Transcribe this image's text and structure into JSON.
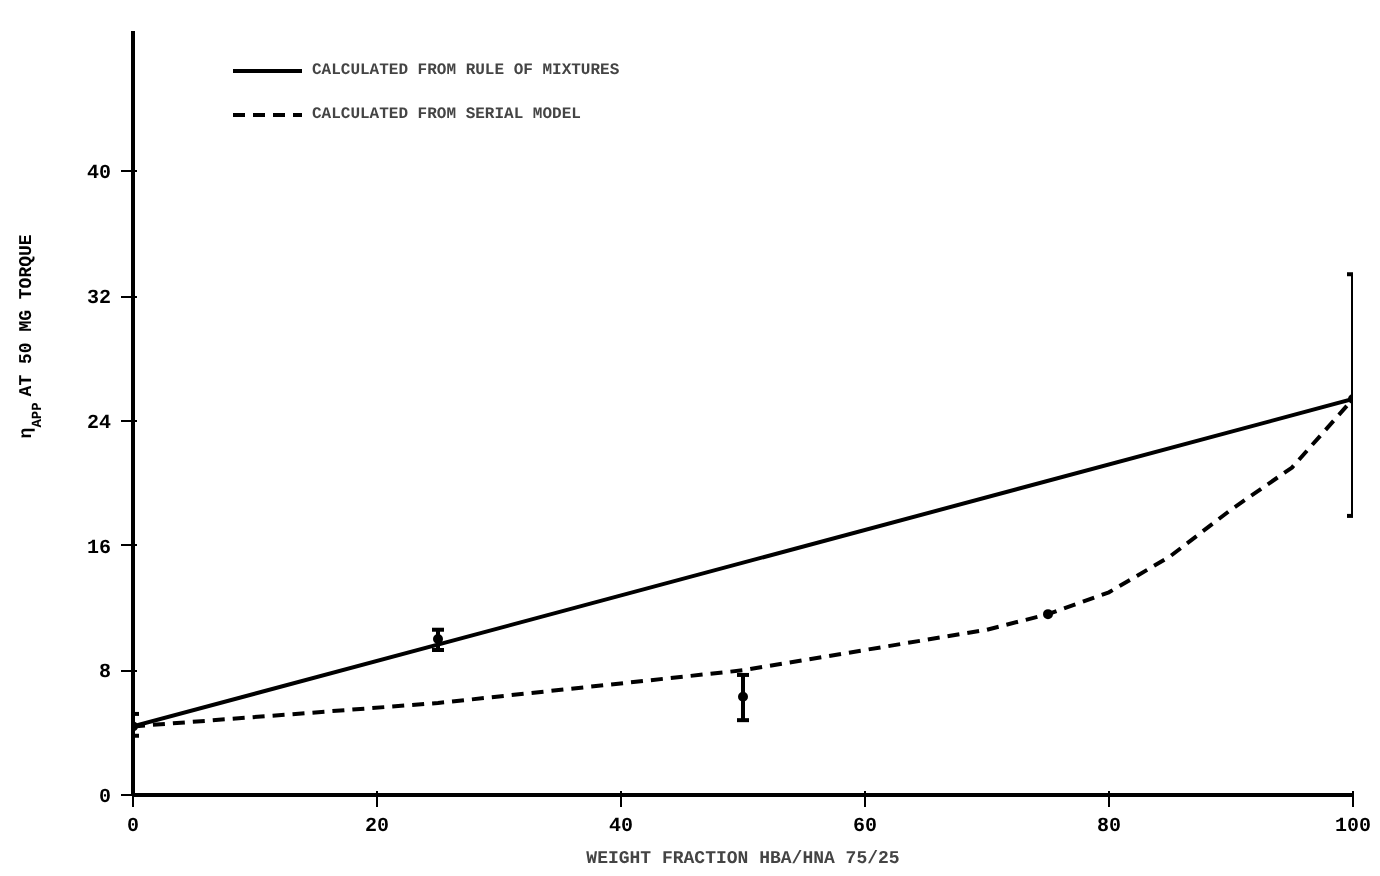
{
  "chart_data": {
    "type": "line",
    "xlabel": "WEIGHT FRACTION HBA/HNA 75/25",
    "ylabel": "η$_{APP}$ AT 50 MG TORQUE",
    "xlim": [
      0,
      100
    ],
    "xticks": [
      0,
      20,
      40,
      60,
      80,
      100
    ],
    "ylim": [
      0,
      49
    ],
    "yticks": [
      0,
      8,
      16,
      24,
      32,
      40
    ],
    "grid": false,
    "legend": "top left",
    "series": [
      {
        "name": "CALCULATED FROM RULE OF MIXTURES",
        "color": "#000000",
        "line_style": "solid",
        "x": [
          0,
          100
        ],
        "values": [
          4.4,
          25.4
        ]
      },
      {
        "name": "CALCULATED FROM SERIAL MODEL",
        "color": "#000000",
        "line_style": "dashed",
        "x": [
          0,
          25,
          50,
          60,
          70,
          75,
          80,
          85,
          90,
          95,
          100
        ],
        "values": [
          4.4,
          5.9,
          8.0,
          9.3,
          10.6,
          11.6,
          13.0,
          15.3,
          18.3,
          21.0,
          25.4
        ]
      },
      {
        "type": "scatter",
        "color": "#000000",
        "marker": "circle",
        "x": [
          0,
          25,
          50,
          75,
          100
        ],
        "values": [
          4.4,
          10.0,
          6.3,
          11.6,
          25.4
        ],
        "errors": [
          [
            3.8,
            5.2
          ],
          [
            9.3,
            10.6
          ],
          [
            4.8,
            7.7
          ],
          null,
          [
            17.9,
            33.4
          ]
        ]
      }
    ]
  }
}
